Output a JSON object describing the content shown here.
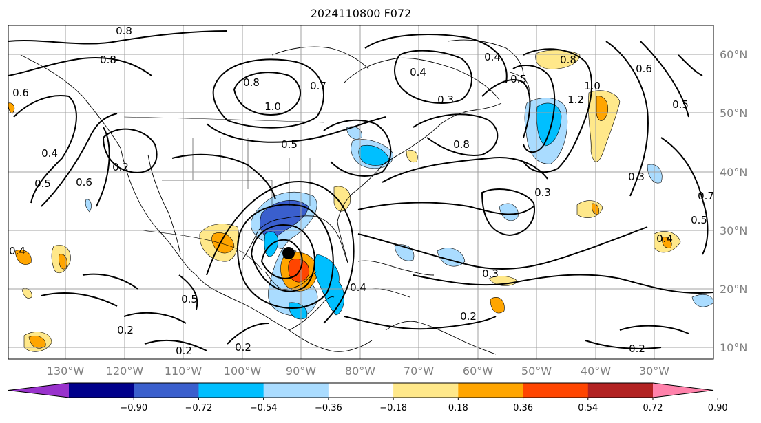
{
  "map": {
    "title": "2024110800 F072",
    "lon_labels": [
      "130°W",
      "120°W",
      "110°W",
      "100°W",
      "90°W",
      "80°W",
      "70°W",
      "60°W",
      "50°W",
      "40°W",
      "30°W"
    ],
    "lat_labels": [
      "60°N",
      "50°N",
      "40°N",
      "30°N",
      "20°N",
      "10°N"
    ],
    "contour_labels": [
      "0.8",
      "0.6",
      "0.4",
      "0.5",
      "0.6",
      "0.2",
      "0.8",
      "1.0",
      "0.7",
      "0.5",
      "0.4",
      "0.3",
      "0.5",
      "0.8",
      "1.2",
      "1.0",
      "0.8",
      "0.5",
      "0.3",
      "0.4",
      "0.3",
      "0.2",
      "0.2",
      "0.2",
      "0.2",
      "0.5",
      "0.3",
      "0.4",
      "0.5",
      "0.6",
      "0.7",
      "0.4",
      "0.8",
      "0.4",
      "0.2"
    ],
    "colorbar": {
      "tick_labels": [
        "−0.90",
        "−0.72",
        "−0.54",
        "−0.36",
        "−0.18",
        "0.18",
        "0.36",
        "0.54",
        "0.72",
        "0.90"
      ],
      "colors": [
        "#9932cc",
        "#00008b",
        "#3a5fcd",
        "#00bfff",
        "#aadcff",
        "#ffffff",
        "#ffe88a",
        "#ffa500",
        "#ff4500",
        "#b22222",
        "#ff82ab"
      ]
    }
  }
}
